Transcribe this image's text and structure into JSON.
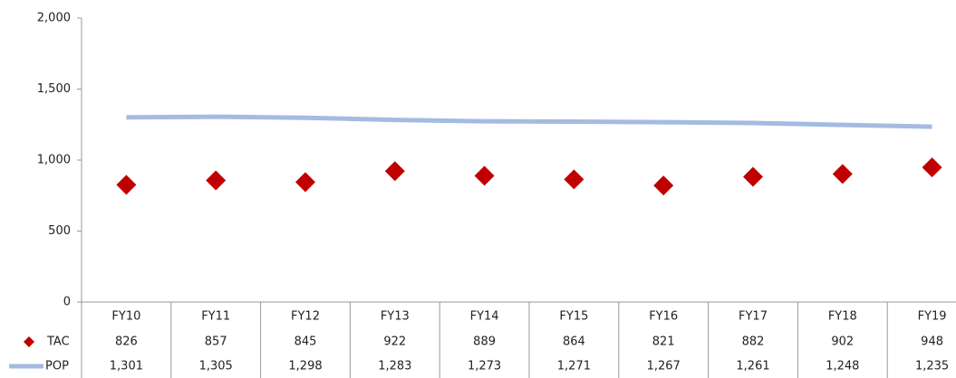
{
  "chart_data": {
    "type": "line",
    "categories": [
      "FY10",
      "FY11",
      "FY12",
      "FY13",
      "FY14",
      "FY15",
      "FY16",
      "FY17",
      "FY18",
      "FY19"
    ],
    "series": [
      {
        "name": "TAC",
        "color": "#c00000",
        "marker": "diamond",
        "values": [
          826,
          857,
          845,
          922,
          889,
          864,
          821,
          882,
          902,
          948
        ]
      },
      {
        "name": "POP",
        "color": "#a4bbe2",
        "marker": "none",
        "values": [
          1301,
          1305,
          1298,
          1283,
          1273,
          1271,
          1267,
          1261,
          1248,
          1235
        ],
        "value_labels": [
          "1,301",
          "1,305",
          "1,298",
          "1,283",
          "1,273",
          "1,271",
          "1,267",
          "1,261",
          "1,248",
          "1,235"
        ]
      }
    ],
    "ylim": [
      0,
      2000
    ],
    "yticks": [
      0,
      500,
      {
        "value": 1000,
        "label": "1,000"
      },
      {
        "value": 1500,
        "label": "1,500"
      },
      {
        "value": 2000,
        "label": "2,000"
      }
    ],
    "grid": false,
    "data_table": true
  }
}
